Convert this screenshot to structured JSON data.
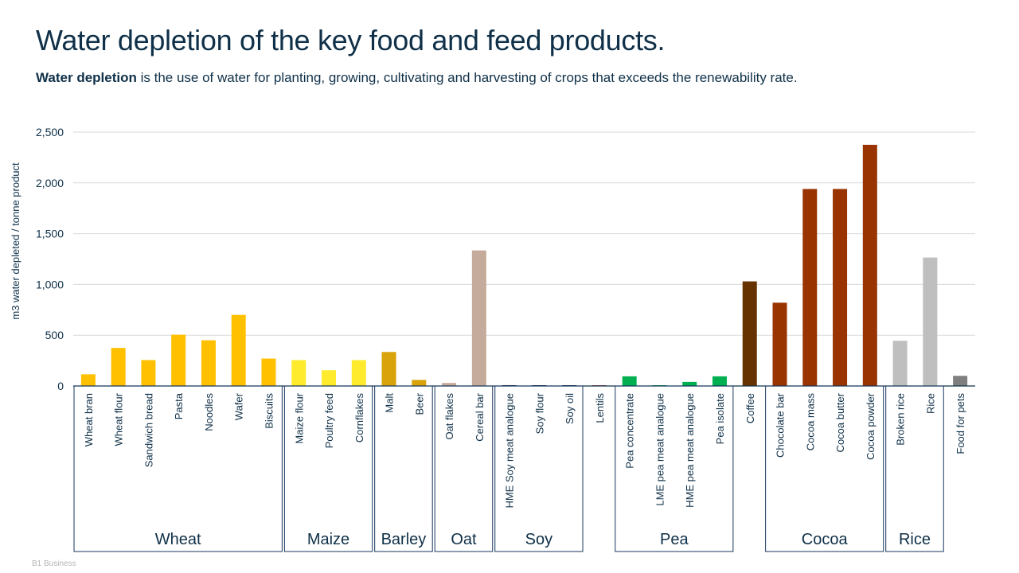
{
  "page": {
    "title": "Water depletion of the key food and feed products.",
    "subtitle_bold": "Water depletion",
    "subtitle_rest": " is the use of water for planting, growing, cultivating and harvesting of crops that exceeds the renewability rate.",
    "footer": "B1 Business"
  },
  "chart_data": {
    "type": "bar",
    "title": "Water depletion of the key food and feed products.",
    "xlabel": "",
    "ylabel": "m3 water depleted / tonne product",
    "ylim": [
      0,
      2500
    ],
    "yticks": [
      0,
      500,
      1000,
      1500,
      2000,
      2500
    ],
    "ytick_labels": [
      "0",
      "500",
      "1,000",
      "1,500",
      "2,000",
      "2,500"
    ],
    "grid": true,
    "categories": [
      "Wheat bran",
      "Wheat flour",
      "Sandwich bread",
      "Pasta",
      "Noodles",
      "Wafer",
      "Biscuits",
      "Maize flour",
      "Poultry feed",
      "Cornflakes",
      "Malt",
      "Beer",
      "Oat flakes",
      "Cereal bar",
      "HME Soy meat analogue",
      "Soy flour",
      "Soy oil",
      "Lentils",
      "Pea concentrate",
      "LME pea meat analogue",
      "HME pea meat analogue",
      "Pea isolate",
      "Coffee",
      "Chocolate bar",
      "Cocoa mass",
      "Cocoa butter",
      "Cocoa powder",
      "Broken rice",
      "Rice",
      "Food for pets"
    ],
    "values": [
      115,
      375,
      255,
      505,
      450,
      700,
      270,
      255,
      155,
      255,
      335,
      60,
      30,
      1335,
      8,
      5,
      5,
      5,
      95,
      5,
      40,
      95,
      1030,
      820,
      1940,
      1940,
      2375,
      445,
      1265,
      100
    ],
    "colors": [
      "#ffc000",
      "#ffc000",
      "#ffc000",
      "#ffc000",
      "#ffc000",
      "#ffc000",
      "#ffc000",
      "#ffeb2e",
      "#ffeb2e",
      "#ffeb2e",
      "#d9a30c",
      "#d9a30c",
      "#c5ab9c",
      "#c5ab9c",
      "#17365d",
      "#17365d",
      "#17365d",
      "#c0504d",
      "#00b050",
      "#00b050",
      "#00b050",
      "#00b050",
      "#663300",
      "#993300",
      "#993300",
      "#993300",
      "#993300",
      "#bfbfbf",
      "#bfbfbf",
      "#7f7f7f"
    ],
    "groups": [
      {
        "name": "Wheat",
        "start": 0,
        "end": 6
      },
      {
        "name": "Maize",
        "start": 7,
        "end": 9
      },
      {
        "name": "Barley",
        "start": 10,
        "end": 11
      },
      {
        "name": "Oat",
        "start": 12,
        "end": 13
      },
      {
        "name": "Soy",
        "start": 14,
        "end": 16
      },
      {
        "name": "Pea",
        "start": 18,
        "end": 21
      },
      {
        "name": "Cocoa",
        "start": 23,
        "end": 26
      },
      {
        "name": "Rice",
        "start": 27,
        "end": 28
      }
    ]
  }
}
